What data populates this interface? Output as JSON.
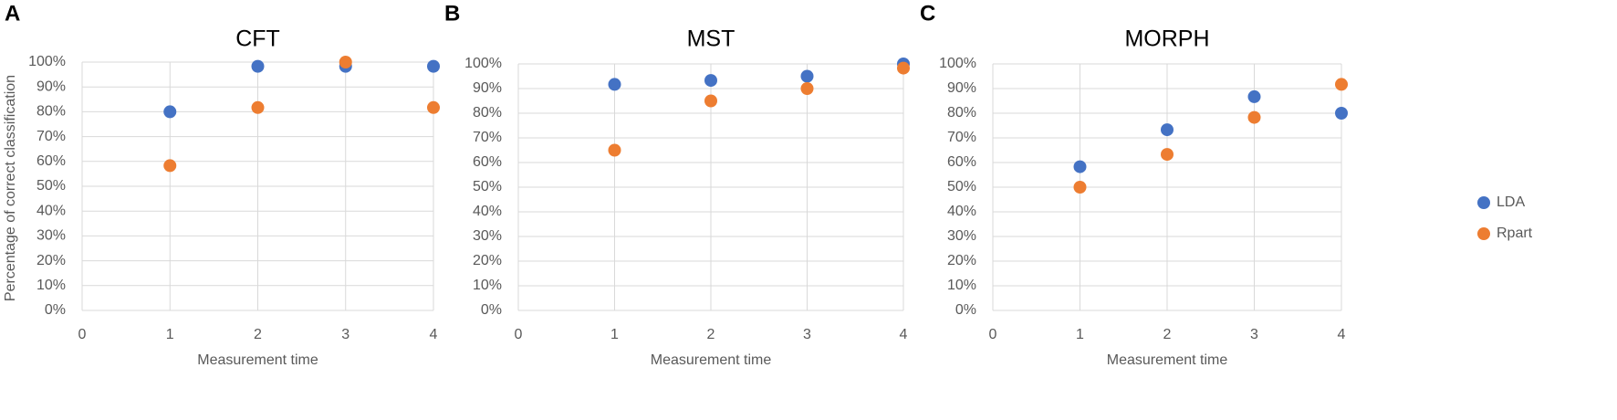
{
  "chart_data": [
    {
      "type": "scatter",
      "panel_label": "A",
      "title": "CFT",
      "x_label": "Measurement time",
      "y_label": "Percentage of correct classification",
      "x": [
        1,
        2,
        3,
        4
      ],
      "xlim": [
        0,
        4
      ],
      "xticks": [
        0,
        1,
        2,
        3,
        4
      ],
      "ylim": [
        0,
        100
      ],
      "yticks": [
        {
          "value": 0,
          "label": "0%"
        },
        {
          "value": 10,
          "label": "10%"
        },
        {
          "value": 20,
          "label": "20%"
        },
        {
          "value": 30,
          "label": "30%"
        },
        {
          "value": 40,
          "label": "40%"
        },
        {
          "value": 50,
          "label": "50%"
        },
        {
          "value": 60,
          "label": "60%"
        },
        {
          "value": 70,
          "label": "70%"
        },
        {
          "value": 80,
          "label": "80%"
        },
        {
          "value": 90,
          "label": "90%"
        },
        {
          "value": 100,
          "label": "100%"
        }
      ],
      "grid": true,
      "series": [
        {
          "color": "#4472c4",
          "values": [
            80,
            98.3,
            98.3,
            98.3
          ]
        },
        {
          "color": "#ed7d31",
          "values": [
            58.3,
            81.7,
            100,
            81.7
          ]
        }
      ]
    },
    {
      "type": "scatter",
      "panel_label": "B",
      "title": "MST",
      "x_label": "Measurement time",
      "x": [
        1,
        2,
        3,
        4
      ],
      "xlim": [
        0,
        4
      ],
      "xticks": [
        0,
        1,
        2,
        3,
        4
      ],
      "ylim": [
        0,
        100
      ],
      "yticks": [
        {
          "value": 0,
          "label": "0%"
        },
        {
          "value": 10,
          "label": "10%"
        },
        {
          "value": 20,
          "label": "20%"
        },
        {
          "value": 30,
          "label": "30%"
        },
        {
          "value": 40,
          "label": "40%"
        },
        {
          "value": 50,
          "label": "50%"
        },
        {
          "value": 60,
          "label": "60%"
        },
        {
          "value": 70,
          "label": "70%"
        },
        {
          "value": 80,
          "label": "80%"
        },
        {
          "value": 90,
          "label": "90%"
        },
        {
          "value": 100,
          "label": "100%"
        }
      ],
      "grid": true,
      "series": [
        {
          "color": "#4472c4",
          "values": [
            91.7,
            93.3,
            95,
            100
          ]
        },
        {
          "color": "#ed7d31",
          "values": [
            65,
            85,
            90,
            98.3
          ]
        }
      ]
    },
    {
      "type": "scatter",
      "panel_label": "C",
      "title": "MORPH",
      "x_label": "Measurement time",
      "x": [
        1,
        2,
        3,
        4
      ],
      "xlim": [
        0,
        4
      ],
      "xticks": [
        0,
        1,
        2,
        3,
        4
      ],
      "ylim": [
        0,
        100
      ],
      "yticks": [
        {
          "value": 0,
          "label": "0%"
        },
        {
          "value": 10,
          "label": "10%"
        },
        {
          "value": 20,
          "label": "20%"
        },
        {
          "value": 30,
          "label": "30%"
        },
        {
          "value": 40,
          "label": "40%"
        },
        {
          "value": 50,
          "label": "50%"
        },
        {
          "value": 60,
          "label": "60%"
        },
        {
          "value": 70,
          "label": "70%"
        },
        {
          "value": 80,
          "label": "80%"
        },
        {
          "value": 90,
          "label": "90%"
        },
        {
          "value": 100,
          "label": "100%"
        }
      ],
      "grid": true,
      "legend": "right",
      "series": [
        {
          "name": "LDA",
          "color": "#4472c4",
          "values": [
            58.3,
            73.3,
            86.7,
            80
          ]
        },
        {
          "name": "Rpart",
          "color": "#ed7d31",
          "values": [
            50,
            63.3,
            78.3,
            91.7
          ]
        }
      ]
    }
  ]
}
